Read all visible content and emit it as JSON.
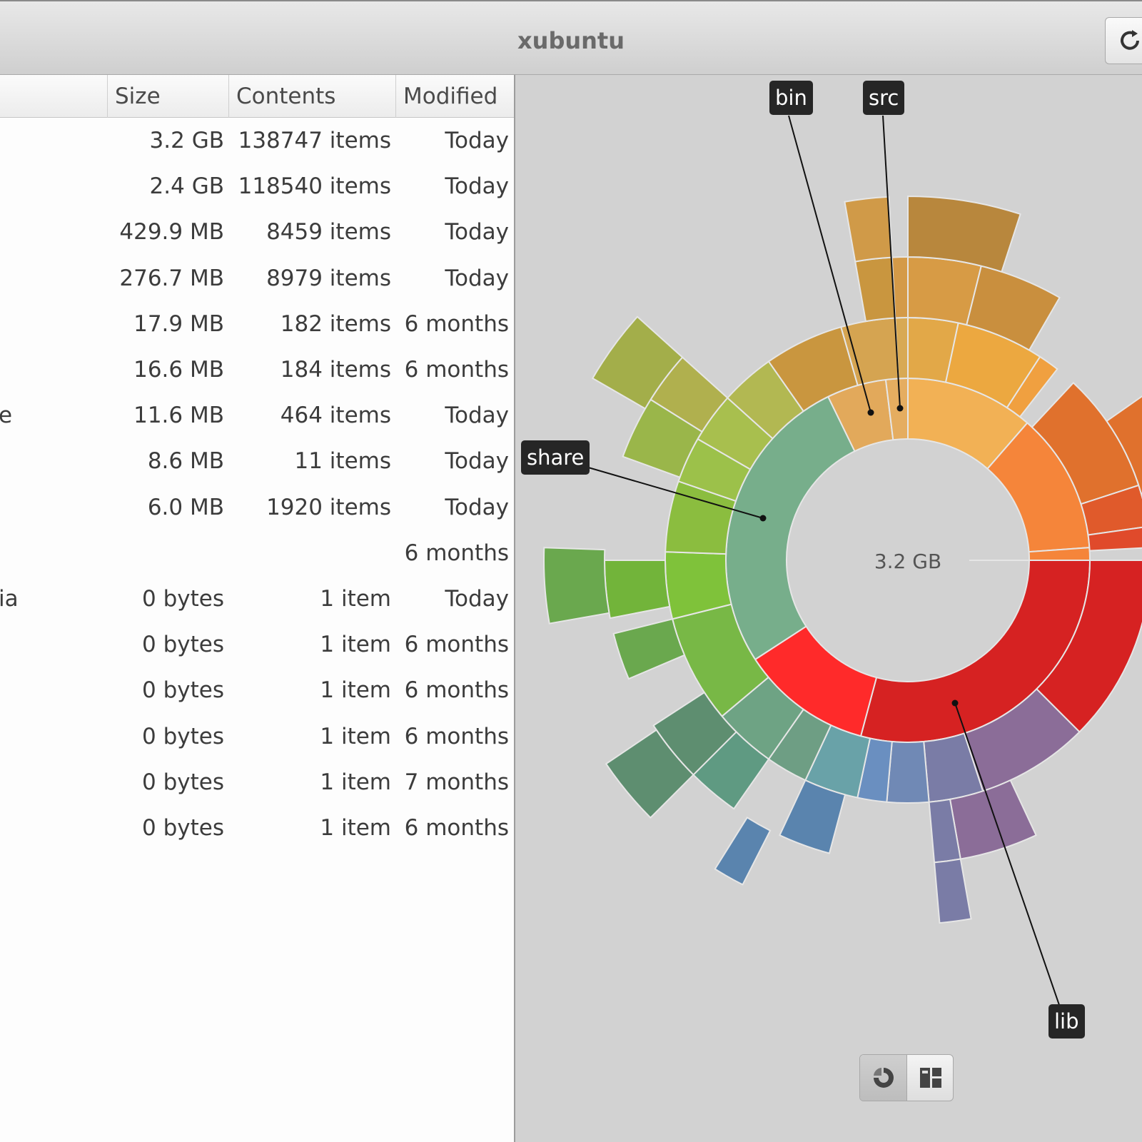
{
  "window": {
    "title": "xubuntu"
  },
  "columns": {
    "size": "Size",
    "contents": "Contents",
    "modified": "Modified"
  },
  "rows": [
    {
      "name": "",
      "size": "3.2 GB",
      "contents": "138747 items",
      "modified": "Today"
    },
    {
      "name": "",
      "size": "2.4 GB",
      "contents": "118540 items",
      "modified": "Today"
    },
    {
      "name": "",
      "size": "429.9 MB",
      "contents": "8459 items",
      "modified": "Today"
    },
    {
      "name": "",
      "size": "276.7 MB",
      "contents": "8979 items",
      "modified": "Today"
    },
    {
      "name": "",
      "size": "17.9 MB",
      "contents": "182 items",
      "modified": "6 months"
    },
    {
      "name": "",
      "size": "16.6 MB",
      "contents": "184 items",
      "modified": "6 months"
    },
    {
      "name": "e",
      "size": "11.6 MB",
      "contents": "464 items",
      "modified": "Today"
    },
    {
      "name": "",
      "size": "8.6 MB",
      "contents": "11 items",
      "modified": "Today"
    },
    {
      "name": "",
      "size": "6.0 MB",
      "contents": "1920 items",
      "modified": "Today"
    },
    {
      "name": "",
      "size": "",
      "contents": "",
      "modified": "6 months"
    },
    {
      "name": "ia",
      "size": "0 bytes",
      "contents": "1 item",
      "modified": "Today"
    },
    {
      "name": "",
      "size": "0 bytes",
      "contents": "1 item",
      "modified": "6 months"
    },
    {
      "name": "",
      "size": "0 bytes",
      "contents": "1 item",
      "modified": "6 months"
    },
    {
      "name": "",
      "size": "0 bytes",
      "contents": "1 item",
      "modified": "6 months"
    },
    {
      "name": "",
      "size": "0 bytes",
      "contents": "1 item",
      "modified": "7 months"
    },
    {
      "name": "",
      "size": "0 bytes",
      "contents": "1 item",
      "modified": "6 months"
    }
  ],
  "chart": {
    "center_label": "3.2 GB",
    "tooltips": {
      "bin": "bin",
      "src": "src",
      "share": "share",
      "lib": "lib"
    }
  },
  "icons": {
    "refresh": "refresh-icon",
    "ring_view": "ring-chart-icon",
    "treemap_view": "treemap-icon"
  },
  "colors": {
    "ring_inner": "#ff2a2a",
    "lib": "#d62222",
    "share": "#77ae8b"
  }
}
